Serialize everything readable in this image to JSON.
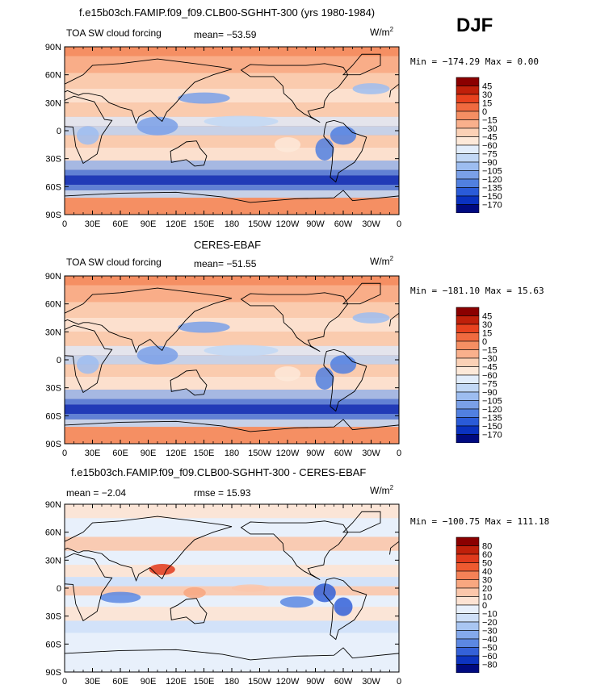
{
  "season": "DJF",
  "panels": [
    {
      "title": "f.e15b03ch.FAMIP.f09_f09.CLB00-SGHHT-300 (yrs 1980-1984)",
      "left_label": "TOA SW cloud forcing",
      "mean_text": "mean=  −53.59",
      "units": "W/m",
      "units_sup": "2",
      "minmax": "Min = −174.29  Max =    0.00"
    },
    {
      "title": "CERES-EBAF",
      "left_label": "TOA SW cloud forcing",
      "mean_text": "mean=  −51.55",
      "units": "W/m",
      "units_sup": "2",
      "minmax": "Min = −181.10  Max =   15.63"
    },
    {
      "title": "f.e15b03ch.FAMIP.f09_f09.CLB00-SGHHT-300 - CERES-EBAF",
      "left_label": "mean =   −2.04",
      "mean_text": "rmse =   15.93",
      "units": "W/m",
      "units_sup": "2",
      "minmax": "Min = −100.75  Max =  111.18"
    }
  ],
  "axes": {
    "lat_labels": [
      "90N",
      "60N",
      "30N",
      "0",
      "30S",
      "60S",
      "90S"
    ],
    "lon_labels": [
      "0",
      "30E",
      "60E",
      "90E",
      "120E",
      "150E",
      "180",
      "150W",
      "120W",
      "90W",
      "60W",
      "30W",
      "0"
    ]
  },
  "chart_data": [
    {
      "type": "heatmap",
      "title": "f.e15b03ch.FAMIP.f09_f09.CLB00-SGHHT-300 (yrs 1980-1984)",
      "variable": "TOA SW cloud forcing",
      "units": "W/m2",
      "mean": -53.59,
      "min": -174.29,
      "max": 0.0,
      "colorbar_levels": [
        45,
        30,
        15,
        0,
        -15,
        -30,
        -45,
        -60,
        -75,
        -90,
        -105,
        -120,
        -135,
        -150,
        -170
      ],
      "colorbar_colors": [
        "#8b0000",
        "#c0200a",
        "#e8421e",
        "#f06a3f",
        "#f58f63",
        "#f9b08c",
        "#fbd1b6",
        "#fde9d9",
        "#e2edfb",
        "#c2d8f5",
        "#9dbdf0",
        "#7aa0e8",
        "#5180e0",
        "#2a5bd8",
        "#0a32c0",
        "#000a80"
      ],
      "x_range": [
        0,
        360
      ],
      "y_range": [
        -90,
        90
      ]
    },
    {
      "type": "heatmap",
      "title": "CERES-EBAF",
      "variable": "TOA SW cloud forcing",
      "units": "W/m2",
      "mean": -51.55,
      "min": -181.1,
      "max": 15.63,
      "colorbar_levels": [
        45,
        30,
        15,
        0,
        -15,
        -30,
        -45,
        -60,
        -75,
        -90,
        -105,
        -120,
        -135,
        -150,
        -170
      ],
      "colorbar_colors": [
        "#8b0000",
        "#c0200a",
        "#e8421e",
        "#f06a3f",
        "#f58f63",
        "#f9b08c",
        "#fbd1b6",
        "#fde9d9",
        "#e2edfb",
        "#c2d8f5",
        "#9dbdf0",
        "#7aa0e8",
        "#5180e0",
        "#2a5bd8",
        "#0a32c0",
        "#000a80"
      ],
      "x_range": [
        0,
        360
      ],
      "y_range": [
        -90,
        90
      ]
    },
    {
      "type": "heatmap",
      "title": "f.e15b03ch.FAMIP.f09_f09.CLB00-SGHHT-300 - CERES-EBAF",
      "variable": "",
      "units": "W/m2",
      "mean": -2.04,
      "rmse": 15.93,
      "min": -100.75,
      "max": 111.18,
      "colorbar_levels": [
        80,
        60,
        50,
        40,
        30,
        20,
        10,
        0,
        -10,
        -20,
        -30,
        -40,
        -50,
        -60,
        -80
      ],
      "colorbar_colors": [
        "#8b0000",
        "#c0200a",
        "#e03a1c",
        "#ee5a30",
        "#f48257",
        "#f8a780",
        "#fbc7ab",
        "#fde3d3",
        "#e8f0fb",
        "#cfe0f8",
        "#a9c6f2",
        "#84a9ec",
        "#5c88e2",
        "#3461d8",
        "#0d34c0",
        "#000a80"
      ],
      "x_range": [
        0,
        360
      ],
      "y_range": [
        -90,
        90
      ]
    }
  ]
}
